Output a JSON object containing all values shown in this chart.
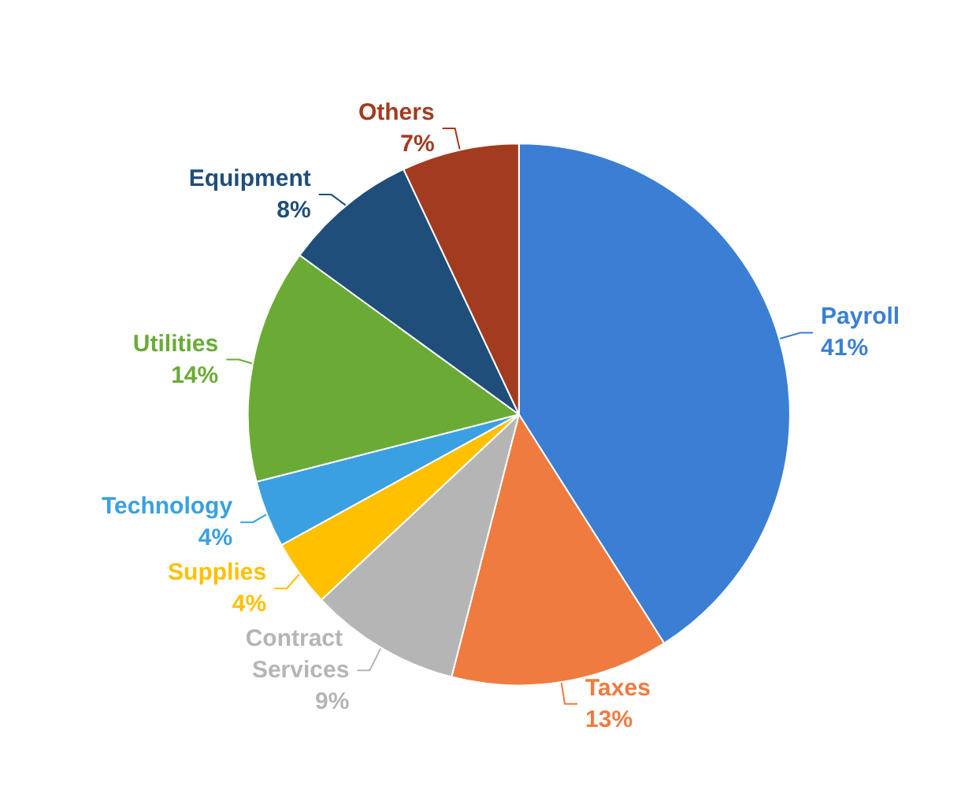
{
  "chart_data": {
    "type": "pie",
    "categories": [
      "Payroll",
      "Taxes",
      "Contract Services",
      "Supplies",
      "Technology",
      "Utilities",
      "Equipment",
      "Others"
    ],
    "values": [
      41,
      13,
      9,
      4,
      4,
      14,
      8,
      7
    ],
    "value_labels": [
      "41%",
      "13%",
      "9%",
      "4%",
      "4%",
      "14%",
      "8%",
      "7%"
    ],
    "colors": [
      "#3b7fd4",
      "#f07b3f",
      "#b5b5b5",
      "#ffc000",
      "#3aa0e2",
      "#6aab35",
      "#1f4e7a",
      "#a33b1f"
    ]
  }
}
